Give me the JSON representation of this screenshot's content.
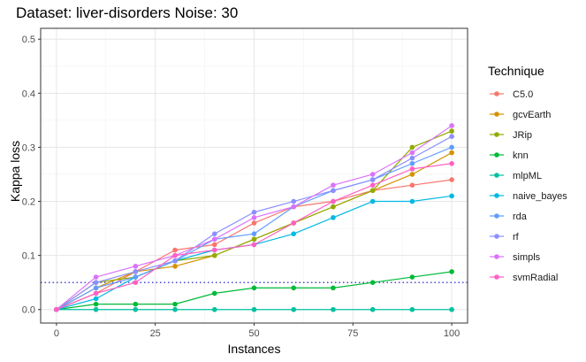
{
  "chart_data": {
    "type": "line",
    "title": "Dataset:  liver-disorders  Noise:  30",
    "xlabel": "Instances",
    "ylabel": "Kappa loss",
    "xlim": [
      -4,
      104
    ],
    "ylim": [
      -0.025,
      0.52
    ],
    "x_ticks": [
      0,
      25,
      50,
      75,
      100
    ],
    "y_ticks": [
      0.0,
      0.1,
      0.2,
      0.3,
      0.4,
      0.5
    ],
    "x_tick_labels": [
      "0",
      "25",
      "50",
      "75",
      "100"
    ],
    "y_tick_labels": [
      "0.0",
      "0.1",
      "0.2",
      "0.3",
      "0.4",
      "0.5"
    ],
    "grid": true,
    "legend_title": "Technique",
    "legend_position": "right",
    "reference_line": {
      "y": 0.05,
      "style": "dotted",
      "color": "#3a3ad6"
    },
    "x": [
      0,
      10,
      20,
      30,
      40,
      50,
      60,
      70,
      80,
      90,
      100
    ],
    "series": [
      {
        "name": "C5.0",
        "color": "#F8766D",
        "values": [
          0,
          0.03,
          0.07,
          0.11,
          0.12,
          0.16,
          0.19,
          0.2,
          0.22,
          0.23,
          0.24
        ]
      },
      {
        "name": "gcvEarth",
        "color": "#D39200",
        "values": [
          0,
          0.04,
          0.07,
          0.08,
          0.1,
          0.13,
          0.16,
          0.19,
          0.22,
          0.25,
          0.29
        ]
      },
      {
        "name": "JRip",
        "color": "#93AA00",
        "values": [
          0,
          0.05,
          0.06,
          0.09,
          0.1,
          0.13,
          0.16,
          0.19,
          0.22,
          0.3,
          0.33
        ]
      },
      {
        "name": "knn",
        "color": "#00BA38",
        "values": [
          0,
          0.01,
          0.01,
          0.01,
          0.03,
          0.04,
          0.04,
          0.04,
          0.05,
          0.06,
          0.07
        ]
      },
      {
        "name": "mlpML",
        "color": "#00C19F",
        "values": [
          0,
          0,
          0,
          0,
          0,
          0,
          0,
          0,
          0,
          0,
          0
        ]
      },
      {
        "name": "naive_bayes",
        "color": "#00B9E3",
        "values": [
          0,
          0.02,
          0.06,
          0.09,
          0.11,
          0.12,
          0.14,
          0.17,
          0.2,
          0.2,
          0.21
        ]
      },
      {
        "name": "rda",
        "color": "#619CFF",
        "values": [
          0,
          0.04,
          0.06,
          0.09,
          0.13,
          0.14,
          0.19,
          0.22,
          0.24,
          0.27,
          0.3
        ]
      },
      {
        "name": "rf",
        "color": "#8B8FFF",
        "values": [
          0,
          0.05,
          0.07,
          0.09,
          0.14,
          0.18,
          0.2,
          0.22,
          0.24,
          0.28,
          0.32
        ]
      },
      {
        "name": "simpls",
        "color": "#DB72FB",
        "values": [
          0,
          0.06,
          0.08,
          0.1,
          0.13,
          0.17,
          0.19,
          0.23,
          0.25,
          0.29,
          0.34
        ]
      },
      {
        "name": "svmRadial",
        "color": "#FF61C3",
        "values": [
          0,
          0.03,
          0.05,
          0.1,
          0.11,
          0.12,
          0.16,
          0.2,
          0.23,
          0.26,
          0.27
        ]
      }
    ]
  }
}
